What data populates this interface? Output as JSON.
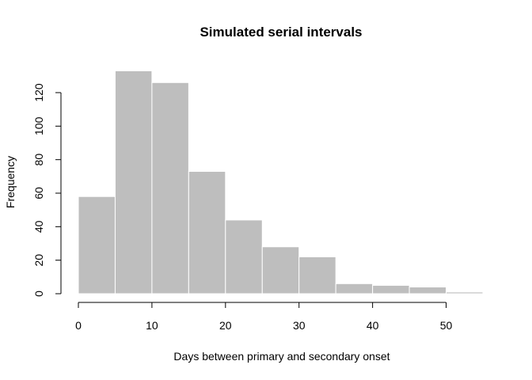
{
  "chart_data": {
    "type": "histogram",
    "title": "Simulated serial intervals",
    "xlabel": "Days between primary and secondary onset",
    "ylabel": "Frequency",
    "bin_edges": [
      0,
      5,
      10,
      15,
      20,
      25,
      30,
      35,
      40,
      45,
      50,
      55
    ],
    "values": [
      58,
      133,
      126,
      73,
      44,
      28,
      22,
      6,
      5,
      4,
      1
    ],
    "xlim": [
      0,
      55
    ],
    "ylim": [
      0,
      130
    ],
    "x_ticks": [
      0,
      10,
      20,
      30,
      40,
      50
    ],
    "y_ticks": [
      0,
      20,
      40,
      60,
      80,
      100,
      120
    ],
    "bar_color": "#bebebe",
    "bar_border_color": "#ffffff",
    "grid": false
  }
}
